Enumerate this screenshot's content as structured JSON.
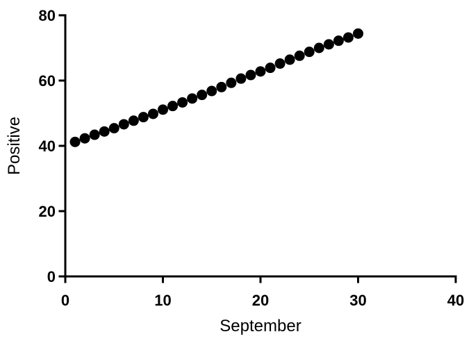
{
  "chart_data": {
    "type": "scatter",
    "xlabel": "September",
    "ylabel": "Positive",
    "xlim": [
      0,
      40
    ],
    "ylim": [
      0,
      80
    ],
    "x_ticks": [
      "0",
      "10",
      "20",
      "30",
      "40"
    ],
    "y_ticks": [
      "0",
      "20",
      "40",
      "60",
      "80"
    ],
    "grid": false,
    "marker_color": "#000000",
    "series": [
      {
        "x": [
          1,
          2,
          3,
          4,
          5,
          6,
          7,
          8,
          9,
          10,
          11,
          12,
          13,
          14,
          15,
          16,
          17,
          18,
          19,
          20,
          21,
          22,
          23,
          24,
          25,
          26,
          27,
          28,
          29,
          30
        ],
        "y": [
          41.2,
          42.3,
          43.4,
          44.4,
          45.4,
          46.6,
          47.7,
          48.8,
          49.8,
          51.1,
          52.2,
          53.3,
          54.5,
          55.6,
          56.8,
          58.0,
          59.3,
          60.6,
          61.7,
          62.8,
          63.9,
          65.2,
          66.4,
          67.6,
          68.8,
          70.0,
          71.1,
          72.2,
          73.2,
          74.4
        ]
      }
    ]
  }
}
